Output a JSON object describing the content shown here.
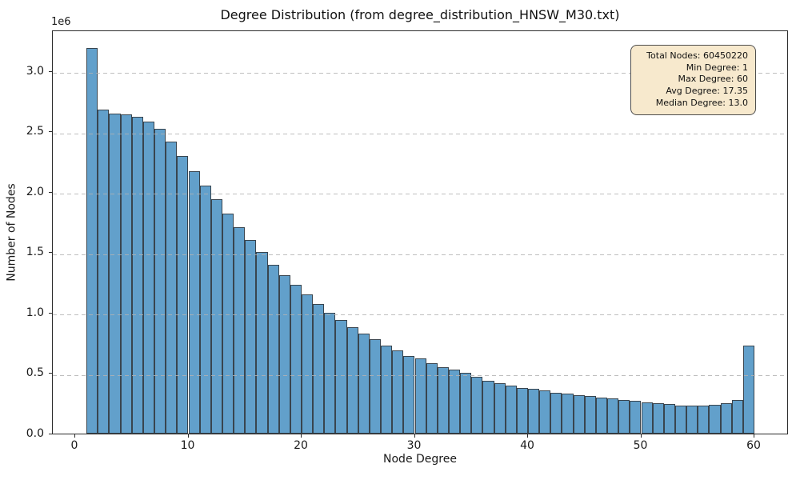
{
  "figure": {
    "background": "#ffffff"
  },
  "chart_data": {
    "type": "bar",
    "subtype": "histogram",
    "title": "Degree Distribution (from degree_distribution_HNSW_M30.txt)",
    "xlabel": "Node Degree",
    "ylabel": "Number of Nodes",
    "y_offset_label": "1e6",
    "unit": "nodes (values in millions, 1e6)",
    "bin_start": 1,
    "bin_width": 1,
    "x_ticks": [
      0,
      10,
      20,
      30,
      40,
      50,
      60
    ],
    "y_ticks": [
      0.0,
      0.5,
      1.0,
      1.5,
      2.0,
      2.5,
      3.0
    ],
    "y_tick_labels": [
      "0.0",
      "0.5",
      "1.0",
      "1.5",
      "2.0",
      "2.5",
      "3.0"
    ],
    "xlim": [
      -2,
      63
    ],
    "ylim_millions": [
      0,
      3.34
    ],
    "grid": "horizontal dashed, drawn above bars",
    "legend_position": "none",
    "values_millions": [
      3.19,
      2.68,
      2.65,
      2.64,
      2.62,
      2.58,
      2.52,
      2.42,
      2.3,
      2.17,
      2.05,
      1.94,
      1.82,
      1.71,
      1.6,
      1.5,
      1.4,
      1.31,
      1.23,
      1.15,
      1.07,
      1.0,
      0.94,
      0.88,
      0.83,
      0.78,
      0.73,
      0.69,
      0.64,
      0.62,
      0.58,
      0.55,
      0.53,
      0.5,
      0.47,
      0.44,
      0.42,
      0.4,
      0.38,
      0.37,
      0.36,
      0.34,
      0.33,
      0.32,
      0.31,
      0.3,
      0.29,
      0.28,
      0.27,
      0.26,
      0.25,
      0.245,
      0.235,
      0.23,
      0.235,
      0.24,
      0.25,
      0.28,
      0.73
    ],
    "annotation": {
      "lines": [
        "Total Nodes: 60450220",
        "Min Degree: 1",
        "Max Degree: 60",
        "Avg Degree: 17.35",
        "Median Degree: 13.0"
      ],
      "stats": {
        "total_nodes": 60450220,
        "min_degree": 1,
        "max_degree": 60,
        "avg_degree": 17.35,
        "median_degree": 13.0
      }
    },
    "colors": {
      "bar_fill": "#62a0cb",
      "bar_edge": "#39454f",
      "grid": "#b2b2b2",
      "annotation_bg": "#f7e9cd",
      "annotation_border": "#4d4d4d",
      "axis": "#2b2b2b",
      "text": "#111111"
    }
  }
}
